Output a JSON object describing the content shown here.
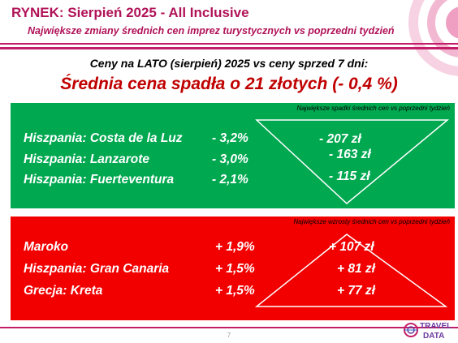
{
  "header": {
    "title": "RYNEK: Sierpień 2025 - All Inclusive",
    "subtitle": "Największe zmiany średnich cen imprez turystycznych vs poprzedni tydzień"
  },
  "intro": "Ceny na LATO (sierpień) 2025 vs ceny sprzed 7 dni:",
  "headline": "Średnia cena spadła o 21 złotych (- 0,4 %)",
  "decreases": {
    "title": "Największe spadki średnich cen vs poprzedni tydzień",
    "rows": [
      {
        "destination": "Hiszpania: Costa de la Luz",
        "percent": "- 3,2%",
        "amount": "- 207 zł"
      },
      {
        "destination": "Hiszpania: Lanzarote",
        "percent": "- 3,0%",
        "amount": "- 163 zł"
      },
      {
        "destination": "Hiszpania: Fuerteventura",
        "percent": "- 2,1%",
        "amount": "- 115 zł"
      }
    ]
  },
  "increases": {
    "title": "Największe wzrosty średnich cen vs poprzedni tydzień",
    "rows": [
      {
        "destination": "Maroko",
        "percent": "+ 1,9%",
        "amount": "+ 107 zł"
      },
      {
        "destination": "Hiszpania: Gran Canaria",
        "percent": "+ 1,5%",
        "amount": "+ 81 zł"
      },
      {
        "destination": "Grecja: Kreta",
        "percent": "+ 1,5%",
        "amount": "+ 77 zł"
      }
    ]
  },
  "footer": {
    "page_number": "7",
    "logo_line1": "TRAVEL",
    "logo_line2": "DATA"
  },
  "colors": {
    "accent": "#c41d68",
    "green_panel": "#00a850",
    "red_panel": "#f20000",
    "headline": "#c00000"
  },
  "icons": [
    "travel-data-logo",
    "decorative-circles"
  ]
}
